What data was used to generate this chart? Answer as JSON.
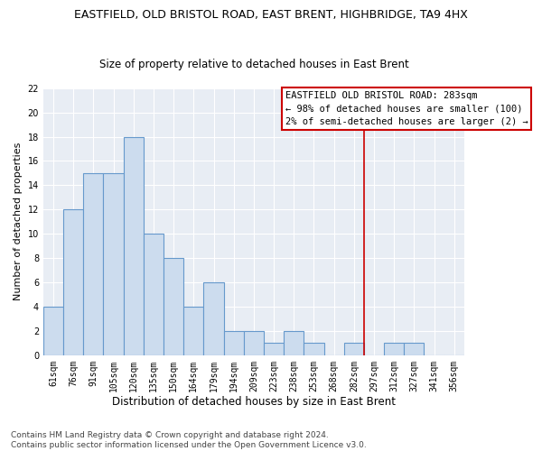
{
  "title1": "EASTFIELD, OLD BRISTOL ROAD, EAST BRENT, HIGHBRIDGE, TA9 4HX",
  "title2": "Size of property relative to detached houses in East Brent",
  "xlabel": "Distribution of detached houses by size in East Brent",
  "ylabel": "Number of detached properties",
  "categories": [
    "61sqm",
    "76sqm",
    "91sqm",
    "105sqm",
    "120sqm",
    "135sqm",
    "150sqm",
    "164sqm",
    "179sqm",
    "194sqm",
    "209sqm",
    "223sqm",
    "238sqm",
    "253sqm",
    "268sqm",
    "282sqm",
    "297sqm",
    "312sqm",
    "327sqm",
    "341sqm",
    "356sqm"
  ],
  "values": [
    4,
    12,
    15,
    15,
    18,
    10,
    8,
    4,
    6,
    2,
    2,
    1,
    2,
    1,
    0,
    1,
    0,
    1,
    1,
    0,
    0
  ],
  "bar_color": "#ccdcee",
  "bar_edge_color": "#6699cc",
  "vline_color": "#cc0000",
  "vline_position": 15.5,
  "legend_text": [
    "EASTFIELD OLD BRISTOL ROAD: 283sqm",
    "← 98% of detached houses are smaller (100)",
    "2% of semi-detached houses are larger (2) →"
  ],
  "legend_box_color": "#cc0000",
  "footer": "Contains HM Land Registry data © Crown copyright and database right 2024.\nContains public sector information licensed under the Open Government Licence v3.0.",
  "ylim": [
    0,
    22
  ],
  "yticks": [
    0,
    2,
    4,
    6,
    8,
    10,
    12,
    14,
    16,
    18,
    20,
    22
  ],
  "plot_bg_color": "#e8edf4",
  "fig_bg_color": "#ffffff",
  "grid_color": "#ffffff",
  "title1_fontsize": 9,
  "title2_fontsize": 8.5,
  "xlabel_fontsize": 8.5,
  "ylabel_fontsize": 8,
  "tick_fontsize": 7,
  "footer_fontsize": 6.5,
  "legend_fontsize": 7.5
}
